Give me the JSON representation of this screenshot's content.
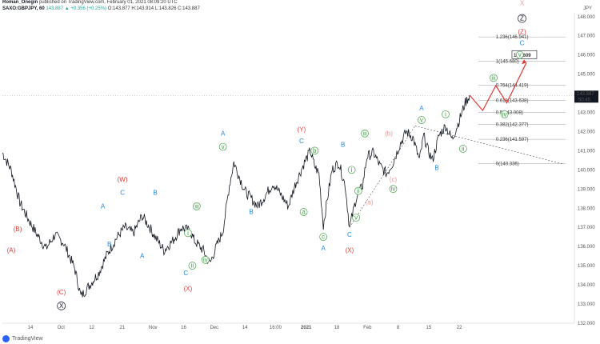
{
  "header": {
    "author": "Roman_Onegin",
    "published": "published on TradingView.com, February 01, 2021 08:09:20 UTC",
    "symbol": "SAXO:GBPJPY, 60",
    "change": "143.887 ▲ +0.356 (+0.25%)",
    "ohlc": "O:143.877 H:143.914 L:143.826 C:143.887"
  },
  "footer": {
    "brand": "TradingView"
  },
  "chart_data": {
    "type": "line",
    "ylabel": "JPY",
    "ylim": [
      132.0,
      148.2
    ],
    "y_ticks": [
      132,
      133,
      134,
      135,
      136,
      137,
      138,
      139,
      140,
      141,
      142,
      143,
      144,
      145,
      146,
      147,
      148
    ],
    "x_ticks": [
      "14",
      "Oct",
      "12",
      "21",
      "Nov",
      "16",
      "Dec",
      "14",
      "16:00",
      "2021",
      "18",
      "Feb",
      "8",
      "15",
      "22"
    ],
    "last_price": "143.887",
    "countdown": "50:45",
    "target_label": "145.609",
    "price_path": [
      [
        0,
        140.9
      ],
      [
        4,
        140.0
      ],
      [
        8,
        138.3
      ],
      [
        12,
        137.4
      ],
      [
        16,
        136.6
      ],
      [
        20,
        135.9
      ],
      [
        24,
        136.6
      ],
      [
        28,
        136.2
      ],
      [
        33,
        134.9
      ],
      [
        36,
        133.4
      ],
      [
        40,
        134.0
      ],
      [
        44,
        134.6
      ],
      [
        48,
        135.6
      ],
      [
        52,
        136.4
      ],
      [
        56,
        137.0
      ],
      [
        60,
        136.7
      ],
      [
        64,
        137.6
      ],
      [
        67,
        137.1
      ],
      [
        70,
        136.5
      ],
      [
        74,
        135.8
      ],
      [
        78,
        136.3
      ],
      [
        82,
        137.0
      ],
      [
        86,
        136.8
      ],
      [
        88,
        136.3
      ],
      [
        92,
        135.8
      ],
      [
        95,
        135.1
      ],
      [
        98,
        136.0
      ],
      [
        101,
        136.8
      ],
      [
        104,
        139.2
      ],
      [
        106,
        140.4
      ],
      [
        108,
        139.8
      ],
      [
        111,
        138.9
      ],
      [
        114,
        138.5
      ],
      [
        117,
        138.1
      ],
      [
        120,
        138.6
      ],
      [
        124,
        139.3
      ],
      [
        127,
        138.8
      ],
      [
        131,
        138.1
      ],
      [
        134,
        139.2
      ],
      [
        138,
        140.3
      ],
      [
        141,
        141.0
      ],
      [
        143,
        140.2
      ],
      [
        145,
        139.8
      ],
      [
        147,
        137.1
      ],
      [
        149,
        138.6
      ],
      [
        151,
        140.0
      ],
      [
        154,
        140.4
      ],
      [
        157,
        139.2
      ],
      [
        159,
        137.0
      ],
      [
        162,
        138.5
      ],
      [
        165,
        139.2
      ],
      [
        167,
        140.7
      ],
      [
        170,
        140.9
      ],
      [
        173,
        140.2
      ],
      [
        176,
        139.8
      ],
      [
        179,
        140.4
      ],
      [
        182,
        141.3
      ],
      [
        185,
        142.0
      ],
      [
        188,
        141.7
      ],
      [
        191,
        140.5
      ],
      [
        193,
        141.8
      ],
      [
        195,
        141.0
      ],
      [
        197,
        140.5
      ],
      [
        200,
        141.8
      ],
      [
        203,
        142.3
      ],
      [
        206,
        141.6
      ],
      [
        209,
        142.5
      ],
      [
        212,
        143.5
      ],
      [
        214,
        143.9
      ]
    ],
    "wave_labels": [
      {
        "text": "(A)",
        "x": 4,
        "y": 135.7,
        "color": "#e53935"
      },
      {
        "text": "(B)",
        "x": 7,
        "y": 136.8,
        "color": "#e53935"
      },
      {
        "text": "(C)",
        "x": 27,
        "y": 133.5,
        "color": "#e53935"
      },
      {
        "text": "X",
        "x": 27,
        "y": 132.8,
        "color": "#131722",
        "circled": true
      },
      {
        "text": "A",
        "x": 46,
        "y": 138.0,
        "color": "#1e88e5"
      },
      {
        "text": "B",
        "x": 49,
        "y": 136.0,
        "color": "#1e88e5"
      },
      {
        "text": "(W)",
        "x": 55,
        "y": 139.4,
        "color": "#e53935"
      },
      {
        "text": "C",
        "x": 55,
        "y": 138.7,
        "color": "#1e88e5"
      },
      {
        "text": "A",
        "x": 64,
        "y": 135.4,
        "color": "#1e88e5"
      },
      {
        "text": "B",
        "x": 70,
        "y": 138.7,
        "color": "#1e88e5"
      },
      {
        "text": "i",
        "x": 85,
        "y": 136.6,
        "color": "#43a047",
        "circled": true
      },
      {
        "text": "iii",
        "x": 89,
        "y": 138.0,
        "color": "#43a047",
        "circled": true
      },
      {
        "text": "ii",
        "x": 87,
        "y": 134.9,
        "color": "#43a047",
        "circled": true
      },
      {
        "text": "iv",
        "x": 93,
        "y": 135.2,
        "color": "#43a047",
        "circled": true
      },
      {
        "text": "C",
        "x": 84,
        "y": 134.5,
        "color": "#1e88e5"
      },
      {
        "text": "(X)",
        "x": 85,
        "y": 133.7,
        "color": "#e53935"
      },
      {
        "text": "A",
        "x": 101,
        "y": 141.8,
        "color": "#1e88e5"
      },
      {
        "text": "v",
        "x": 101,
        "y": 141.1,
        "color": "#43a047",
        "circled": true
      },
      {
        "text": "B",
        "x": 114,
        "y": 137.7,
        "color": "#1e88e5"
      },
      {
        "text": "(Y)",
        "x": 137,
        "y": 142.0,
        "color": "#e53935"
      },
      {
        "text": "C",
        "x": 137,
        "y": 141.4,
        "color": "#1e88e5"
      },
      {
        "text": "b",
        "x": 143,
        "y": 140.9,
        "color": "#43a047",
        "circled": true
      },
      {
        "text": "a",
        "x": 138,
        "y": 137.7,
        "color": "#43a047",
        "circled": true
      },
      {
        "text": "c",
        "x": 147,
        "y": 136.4,
        "color": "#43a047",
        "circled": true
      },
      {
        "text": "A",
        "x": 147,
        "y": 135.8,
        "color": "#1e88e5"
      },
      {
        "text": "B",
        "x": 156,
        "y": 141.2,
        "color": "#1e88e5"
      },
      {
        "text": "i",
        "x": 160,
        "y": 139.9,
        "color": "#43a047",
        "circled": true
      },
      {
        "text": "iii",
        "x": 166,
        "y": 141.8,
        "color": "#43a047",
        "circled": true
      },
      {
        "text": "ii",
        "x": 163,
        "y": 138.8,
        "color": "#43a047",
        "circled": true
      },
      {
        "text": "v",
        "x": 162,
        "y": 137.4,
        "color": "#43a047",
        "circled": true
      },
      {
        "text": "C",
        "x": 159,
        "y": 136.5,
        "color": "#1e88e5"
      },
      {
        "text": "(X)",
        "x": 159,
        "y": 135.7,
        "color": "#e53935"
      },
      {
        "text": "(b)",
        "x": 177,
        "y": 141.8,
        "color": "#ef9a9a"
      },
      {
        "text": "(a)",
        "x": 168,
        "y": 138.2,
        "color": "#ef9a9a"
      },
      {
        "text": "(c)",
        "x": 179,
        "y": 139.4,
        "color": "#ef9a9a"
      },
      {
        "text": "iv",
        "x": 179,
        "y": 138.9,
        "color": "#43a047",
        "circled": true
      },
      {
        "text": "A",
        "x": 192,
        "y": 143.1,
        "color": "#1e88e5"
      },
      {
        "text": "v",
        "x": 192,
        "y": 142.5,
        "color": "#43a047",
        "circled": true
      },
      {
        "text": "i",
        "x": 203,
        "y": 142.8,
        "color": "#43a047",
        "circled": true
      },
      {
        "text": "ii",
        "x": 211,
        "y": 141.0,
        "color": "#43a047",
        "circled": true
      },
      {
        "text": "B",
        "x": 199,
        "y": 140.0,
        "color": "#1e88e5"
      },
      {
        "text": "iii",
        "x": 225,
        "y": 144.7,
        "color": "#43a047",
        "circled": true
      },
      {
        "text": "iv",
        "x": 230,
        "y": 142.8,
        "color": "#43a047",
        "circled": true
      },
      {
        "text": "v",
        "x": 237,
        "y": 145.9,
        "color": "#43a047",
        "circled": true
      },
      {
        "text": "C",
        "x": 238,
        "y": 146.5,
        "color": "#1e88e5"
      },
      {
        "text": "(Z)",
        "x": 238,
        "y": 147.1,
        "color": "#e53935"
      },
      {
        "text": "Z",
        "x": 238,
        "y": 147.8,
        "color": "#131722",
        "circled": true
      },
      {
        "text": "X",
        "x": 238,
        "y": 148.6,
        "color": "#ef9a9a"
      }
    ],
    "fib_levels": [
      {
        "label": "1.236(146.941)",
        "y": 146.941
      },
      {
        "label": "1(145.680)",
        "y": 145.68
      },
      {
        "label": "0.764(144.419)",
        "y": 144.419
      },
      {
        "label": "0.618(143.638)",
        "y": 143.638
      },
      {
        "label": "0.5(143.008)",
        "y": 143.008
      },
      {
        "label": "0.382(142.377)",
        "y": 142.377
      },
      {
        "label": "0.236(141.597)",
        "y": 141.597
      },
      {
        "label": "0(140.336)",
        "y": 140.336
      }
    ],
    "projection": [
      [
        214,
        143.9
      ],
      [
        220,
        143.1
      ],
      [
        226,
        144.4
      ],
      [
        231,
        143.5
      ],
      [
        240,
        145.6
      ]
    ]
  }
}
